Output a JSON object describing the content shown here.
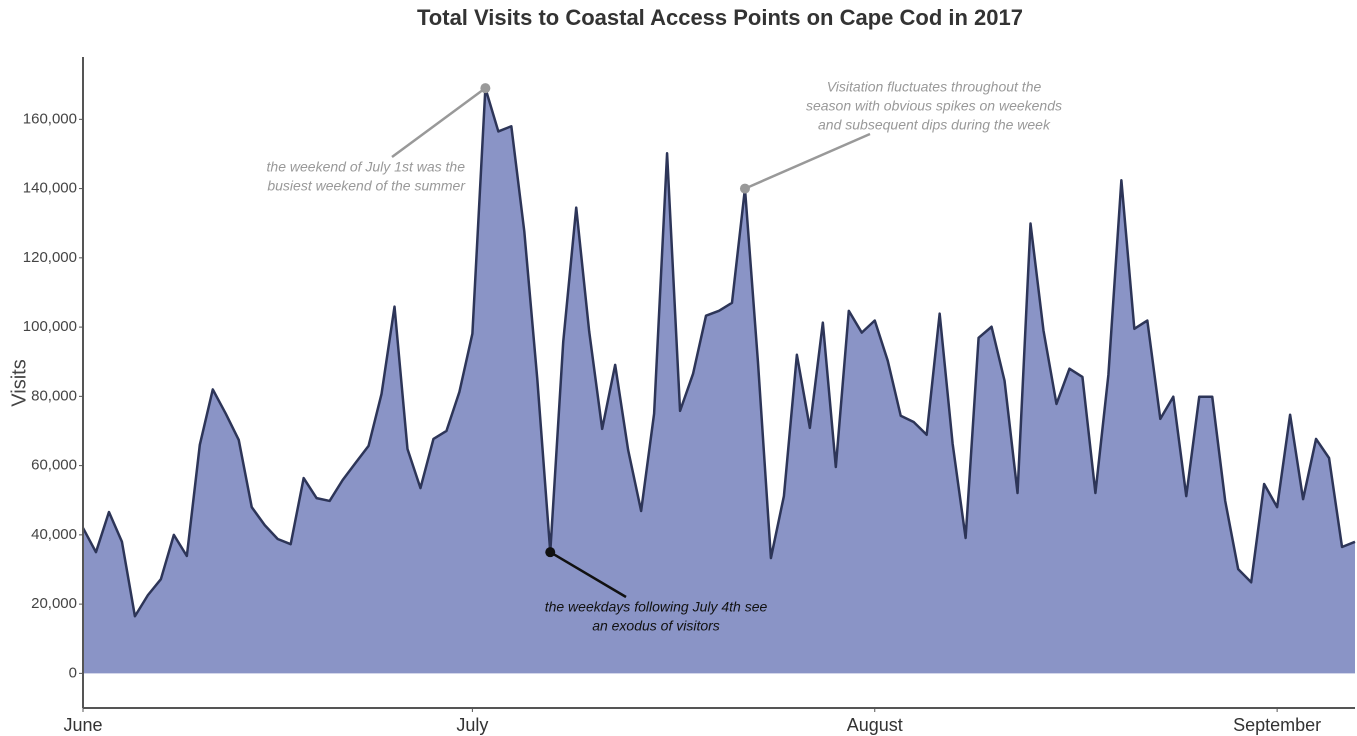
{
  "chart_data": {
    "type": "area",
    "title": "Total Visits to Coastal Access Points on Cape Cod in 2017",
    "y_label": "Visits",
    "fill_color": "#8a94c6",
    "line_color": "#2d3558",
    "x": [
      0,
      1,
      2,
      3,
      4,
      5,
      6,
      7,
      8,
      9,
      10,
      11,
      12,
      13,
      14,
      15,
      16,
      17,
      18,
      19,
      20,
      21,
      22,
      23,
      24,
      25,
      26,
      27,
      28,
      29,
      30,
      31,
      32,
      33,
      34,
      35,
      36,
      37,
      38,
      39,
      40,
      41,
      42,
      43,
      44,
      45,
      46,
      47,
      48,
      49,
      50,
      51,
      52,
      53,
      54,
      55,
      56,
      57,
      58,
      59,
      60,
      61,
      62,
      63,
      64,
      65,
      66,
      67,
      68,
      69,
      70,
      71,
      72,
      73,
      74,
      75,
      76,
      77,
      78,
      79,
      80,
      81,
      82,
      83,
      84,
      85,
      86,
      87,
      88,
      89,
      90,
      91,
      92,
      93,
      94,
      95,
      96,
      97,
      98
    ],
    "values": [
      42000,
      35000,
      46600,
      38000,
      16500,
      22600,
      27200,
      40000,
      33900,
      66000,
      82000,
      75000,
      67400,
      48000,
      42800,
      38800,
      37300,
      56400,
      50600,
      49800,
      55800,
      60800,
      65700,
      80700,
      105900,
      64800,
      53500,
      67700,
      70000,
      81300,
      98100,
      169000,
      156500,
      158000,
      127600,
      85000,
      35000,
      95800,
      134500,
      98700,
      70600,
      89100,
      64500,
      46900,
      75000,
      150200,
      75800,
      86500,
      103300,
      104700,
      107000,
      140000,
      90000,
      33300,
      51200,
      92000,
      70900,
      101300,
      59600,
      104700,
      98400,
      101900,
      90300,
      74400,
      72600,
      68900,
      103900,
      66300,
      39100,
      96900,
      100100,
      84500,
      52100,
      129900,
      99000,
      77800,
      88000,
      85600,
      52100,
      86200,
      142400,
      99500,
      101900,
      73500,
      79900,
      51200,
      79900,
      79900,
      49800,
      30100,
      26300,
      54700,
      48000,
      74700,
      50300,
      67700,
      62200,
      36500,
      38000
    ],
    "xlim": [
      0,
      98
    ],
    "xticks": [
      {
        "value": 0,
        "label": "June"
      },
      {
        "value": 30,
        "label": "July"
      },
      {
        "value": 61,
        "label": "August"
      },
      {
        "value": 92,
        "label": "September"
      }
    ],
    "ylim": [
      -10000,
      178000
    ],
    "yticks": [
      {
        "value": 0,
        "label": "0"
      },
      {
        "value": 20000,
        "label": "20,000"
      },
      {
        "value": 40000,
        "label": "40,000"
      },
      {
        "value": 60000,
        "label": "60,000"
      },
      {
        "value": 80000,
        "label": "80,000"
      },
      {
        "value": 100000,
        "label": "100,000"
      },
      {
        "value": 120000,
        "label": "120,000"
      },
      {
        "value": 140000,
        "label": "140,000"
      },
      {
        "value": 160000,
        "label": "160,000"
      }
    ],
    "grid": false,
    "annotations": [
      {
        "index": 31,
        "color": "#999999",
        "lines": [
          "the weekend of July 1st was the",
          "busiest weekend of the summer"
        ]
      },
      {
        "index": 51,
        "color": "#999999",
        "lines": [
          "Visitation fluctuates throughout the",
          "season with obvious spikes on weekends",
          "and subsequent dips during the week"
        ]
      },
      {
        "index": 36,
        "color": "#111111",
        "lines": [
          "the weekdays following July 4th see",
          "an exodus of visitors"
        ]
      }
    ]
  }
}
